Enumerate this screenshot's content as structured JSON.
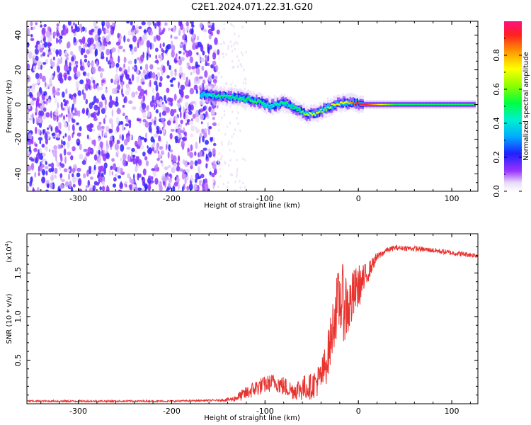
{
  "chart_data": [
    {
      "type": "heatmap",
      "title": "C2E1.2024.071.22.31.G20",
      "xlabel": "Height of straight line (km)",
      "ylabel": "Frequency (Hz)",
      "xlim": [
        -355,
        128
      ],
      "ylim": [
        -50,
        48
      ],
      "xticks": [
        "-300",
        "-200",
        "-100",
        "0",
        "100"
      ],
      "yticks": [
        "-40",
        "-20",
        "0",
        "20",
        "40"
      ],
      "colorbar": {
        "label": "Normalized spectral amplitude",
        "range": [
          0,
          1
        ],
        "ticks": [
          "0.0",
          "0.2",
          "0.4",
          "0.6",
          "0.8"
        ]
      },
      "features": [
        {
          "region": "noise",
          "x_range": [
            -355,
            -150
          ],
          "y_range": [
            -50,
            48
          ],
          "amplitude": 0.15
        },
        {
          "region": "signal-track",
          "points": [
            {
              "x": -170,
              "y": 6,
              "amp": 0.35
            },
            {
              "x": -150,
              "y": 5,
              "amp": 0.5
            },
            {
              "x": -130,
              "y": 4,
              "amp": 0.5
            },
            {
              "x": -110,
              "y": 2,
              "amp": 0.55
            },
            {
              "x": -95,
              "y": -1,
              "amp": 0.4
            },
            {
              "x": -80,
              "y": 1,
              "amp": 0.5
            },
            {
              "x": -65,
              "y": -3,
              "amp": 0.5
            },
            {
              "x": -55,
              "y": -6,
              "amp": 0.7
            },
            {
              "x": -45,
              "y": -5,
              "amp": 0.7
            },
            {
              "x": -35,
              "y": -2,
              "amp": 0.6
            },
            {
              "x": -25,
              "y": 0,
              "amp": 0.75
            },
            {
              "x": -15,
              "y": 1,
              "amp": 0.7
            },
            {
              "x": -5,
              "y": 1,
              "amp": 0.9
            },
            {
              "x": 5,
              "y": 0,
              "amp": 0.95
            },
            {
              "x": 40,
              "y": 0,
              "amp": 0.5
            },
            {
              "x": 80,
              "y": 0,
              "amp": 0.5
            },
            {
              "x": 125,
              "y": 0,
              "amp": 0.5
            }
          ]
        }
      ]
    },
    {
      "type": "line",
      "xlabel": "Height of straight line (km)",
      "ylabel": "SNR (10 * v/v)",
      "yscale_label": "(x10",
      "yscale_exp": "4",
      "yscale_close": ")",
      "xlim": [
        -355,
        128
      ],
      "ylim": [
        0,
        1.95
      ],
      "xticks": [
        "-300",
        "-200",
        "-100",
        "0",
        "100"
      ],
      "yticks": [
        "0.5",
        "1.0",
        "1.5"
      ],
      "color": "#e8332f",
      "series": [
        {
          "x": [
            -355,
            -300,
            -250,
            -200,
            -150,
            -135,
            -120,
            -110,
            -100,
            -90,
            -80,
            -70,
            -60,
            -50,
            -40,
            -35,
            -30,
            -25,
            -20,
            -15,
            -10,
            -5,
            0,
            5,
            10,
            15,
            20,
            25,
            30,
            40,
            60,
            80,
            100,
            128
          ],
          "y": [
            0.03,
            0.03,
            0.03,
            0.03,
            0.04,
            0.05,
            0.12,
            0.18,
            0.22,
            0.25,
            0.2,
            0.15,
            0.18,
            0.2,
            0.3,
            0.45,
            0.7,
            1.05,
            1.2,
            1.15,
            1.1,
            1.25,
            1.35,
            1.4,
            1.5,
            1.6,
            1.68,
            1.72,
            1.76,
            1.79,
            1.78,
            1.76,
            1.73,
            1.7
          ],
          "spread": [
            0.01,
            0.01,
            0.01,
            0.01,
            0.01,
            0.03,
            0.08,
            0.1,
            0.1,
            0.1,
            0.12,
            0.1,
            0.15,
            0.15,
            0.2,
            0.25,
            0.3,
            0.35,
            0.4,
            0.45,
            0.35,
            0.3,
            0.25,
            0.2,
            0.12,
            0.08,
            0.05,
            0.04,
            0.03,
            0.03,
            0.03,
            0.03,
            0.03,
            0.03
          ]
        }
      ]
    }
  ]
}
